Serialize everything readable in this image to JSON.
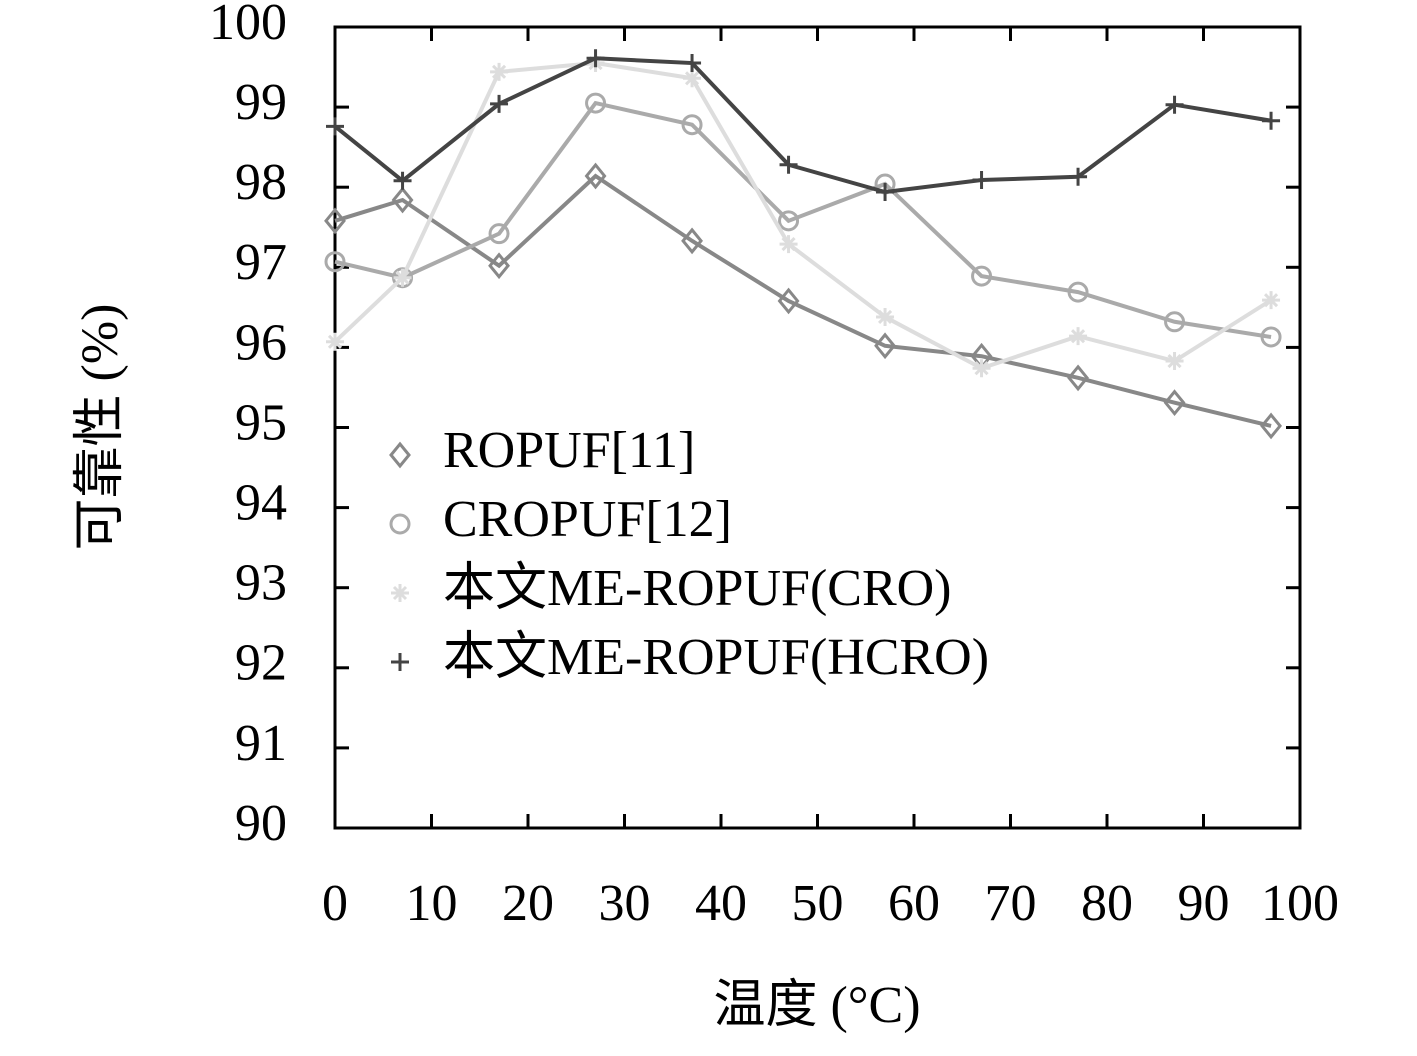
{
  "chart_data": {
    "type": "line",
    "x_label": "温度 (°C)",
    "y_label": "可靠性 (%)",
    "x": [
      0,
      7,
      17,
      27,
      37,
      47,
      57,
      67,
      77,
      87,
      97
    ],
    "series": [
      {
        "name": "ROPUF[11]",
        "color": "#888888",
        "marker": "diamond",
        "values": [
          97.58,
          97.84,
          97.02,
          98.14,
          97.33,
          96.58,
          96.02,
          95.89,
          95.62,
          95.31,
          95.02
        ]
      },
      {
        "name": "CROPUF[12]",
        "color": "#aaaaaa",
        "marker": "circle",
        "values": [
          97.07,
          96.87,
          97.42,
          99.05,
          98.78,
          97.58,
          98.04,
          96.89,
          96.69,
          96.32,
          96.13
        ]
      },
      {
        "name": "本文ME-ROPUF(CRO)",
        "color": "#dddddd",
        "marker": "asterisk",
        "values": [
          96.07,
          96.87,
          99.44,
          99.55,
          99.36,
          97.29,
          96.38,
          95.74,
          96.14,
          95.83,
          96.59
        ]
      },
      {
        "name": "本文ME-ROPUF(HCRO)",
        "color": "#444444",
        "marker": "plus",
        "values": [
          98.76,
          98.08,
          99.04,
          99.61,
          99.55,
          98.28,
          97.94,
          98.09,
          98.13,
          99.03,
          98.83
        ]
      }
    ],
    "xlim": [
      0,
      100
    ],
    "xticks": [
      0,
      10,
      20,
      30,
      40,
      50,
      60,
      70,
      80,
      90,
      100
    ],
    "ylim": [
      90,
      100
    ],
    "yticks": [
      90,
      91,
      92,
      93,
      94,
      95,
      96,
      97,
      98,
      99,
      100
    ],
    "legend": "left"
  }
}
